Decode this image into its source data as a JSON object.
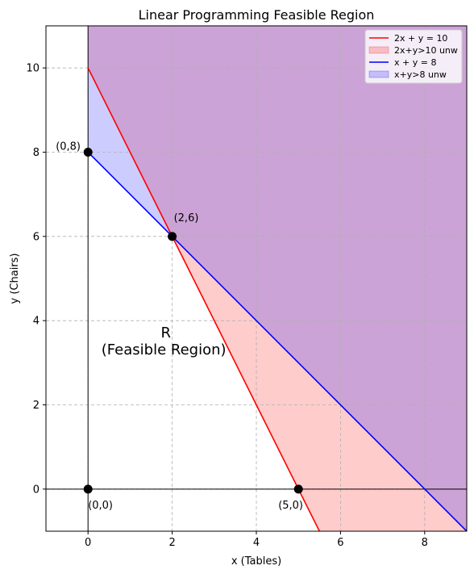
{
  "chart_data": {
    "type": "line",
    "title": "Linear Programming Feasible Region",
    "xlabel": "x (Tables)",
    "ylabel": "y (Chairs)",
    "xlim": [
      -1,
      9
    ],
    "ylim": [
      -1,
      11
    ],
    "xticks": [
      0,
      2,
      4,
      6,
      8
    ],
    "yticks": [
      0,
      2,
      4,
      6,
      8,
      10
    ],
    "xtick_labels": [
      "0",
      "2",
      "4",
      "6",
      "8"
    ],
    "ytick_labels": [
      "0",
      "2",
      "4",
      "6",
      "8",
      "10"
    ],
    "grid": true,
    "legend_position": "top-right",
    "series": [
      {
        "name": "2x + y = 10",
        "kind": "line",
        "color": "#ff0000",
        "points": [
          [
            0,
            10
          ],
          [
            5.5,
            -1
          ]
        ]
      },
      {
        "name": "2x+y>10 unw",
        "kind": "region",
        "color": "#ff0000",
        "alpha": 0.2
      },
      {
        "name": "x + y = 8",
        "kind": "line",
        "color": "#0000ff",
        "points": [
          [
            0,
            8
          ],
          [
            9,
            -1
          ]
        ]
      },
      {
        "name": "x+y>8 unw",
        "kind": "region",
        "color": "#0000ff",
        "alpha": 0.2
      }
    ],
    "vertices": [
      {
        "x": 0,
        "y": 8,
        "label": "(0,8)"
      },
      {
        "x": 2,
        "y": 6,
        "label": "(2,6)"
      },
      {
        "x": 0,
        "y": 0,
        "label": "(0,0)"
      },
      {
        "x": 5,
        "y": 0,
        "label": "(5,0)"
      }
    ],
    "annotations": [
      {
        "text": "R",
        "x": 1.85,
        "y": 3.6
      },
      {
        "text": "(Feasible Region)",
        "x": 1.8,
        "y": 3.2
      }
    ]
  }
}
